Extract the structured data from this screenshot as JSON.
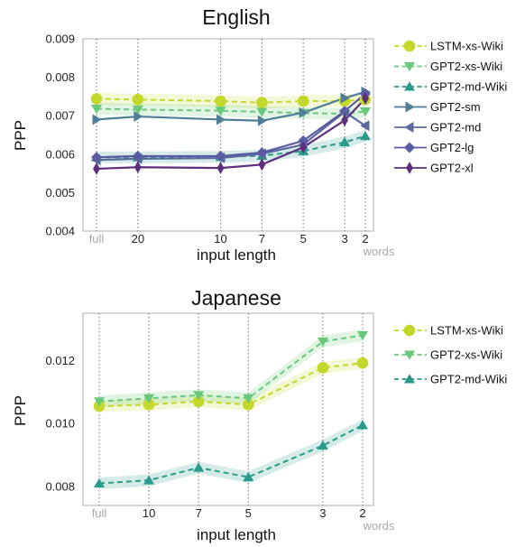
{
  "colors": {
    "LSTM-xs-Wiki": "#c3d82b",
    "GPT2-xs-Wiki": "#69c97a",
    "GPT2-md-Wiki": "#2a9b8a",
    "GPT2-sm": "#4f7e96",
    "GPT2-md": "#5b6a9c",
    "GPT2-lg": "#5c5aa3",
    "GPT2-xl": "#5e2f7d"
  },
  "chart_data": [
    {
      "type": "line",
      "title": "English",
      "xlabel": "input length",
      "ylabel": "PPP",
      "x_unit_label": "words",
      "categories": [
        "full",
        "20",
        "10",
        "7",
        "5",
        "3",
        "2"
      ],
      "x_positions": [
        0,
        1,
        3,
        4,
        5,
        6,
        6.5
      ],
      "ylim": [
        0.004,
        0.009
      ],
      "yticks": [
        "0.004",
        "0.005",
        "0.006",
        "0.007",
        "0.008",
        "0.009"
      ],
      "grid": false,
      "legend_position": "right",
      "series": [
        {
          "name": "LSTM-xs-Wiki",
          "marker": "circle",
          "dashed": true,
          "band": true,
          "values": [
            0.00744,
            0.00742,
            0.00738,
            0.00734,
            0.00738,
            0.00738,
            0.00742
          ]
        },
        {
          "name": "GPT2-xs-Wiki",
          "marker": "tri-down",
          "dashed": true,
          "band": true,
          "values": [
            0.00718,
            0.00716,
            0.00713,
            0.0071,
            0.00707,
            0.00705,
            0.00711
          ]
        },
        {
          "name": "GPT2-md-Wiki",
          "marker": "tri-up",
          "dashed": true,
          "band": true,
          "values": [
            0.00592,
            0.00592,
            0.00593,
            0.00596,
            0.00608,
            0.00631,
            0.00647
          ]
        },
        {
          "name": "GPT2-sm",
          "marker": "tri-right",
          "dashed": false,
          "band": false,
          "values": [
            0.0069,
            0.00698,
            0.0069,
            0.00687,
            0.00708,
            0.00746,
            0.00762
          ]
        },
        {
          "name": "GPT2-md",
          "marker": "tri-left",
          "dashed": false,
          "band": false,
          "values": [
            0.00585,
            0.00588,
            0.0059,
            0.00601,
            0.00625,
            0.0071,
            0.00674
          ]
        },
        {
          "name": "GPT2-lg",
          "marker": "diamond",
          "dashed": false,
          "band": false,
          "values": [
            0.00592,
            0.00595,
            0.00595,
            0.00604,
            0.00635,
            0.00712,
            0.00757
          ]
        },
        {
          "name": "GPT2-xl",
          "marker": "thin-diamond",
          "dashed": false,
          "band": false,
          "values": [
            0.00562,
            0.00566,
            0.00564,
            0.00573,
            0.00618,
            0.00688,
            0.00745
          ]
        }
      ]
    },
    {
      "type": "line",
      "title": "Japanese",
      "xlabel": "input length",
      "ylabel": "PPP",
      "x_unit_label": "words",
      "categories": [
        "full",
        "10",
        "7",
        "5",
        "3",
        "2"
      ],
      "x_positions": [
        0,
        1,
        2,
        3,
        4.5,
        5.3
      ],
      "ylim": [
        0.0074,
        0.0135
      ],
      "yticks": [
        "0.008",
        "0.010",
        "0.012"
      ],
      "grid": false,
      "legend_position": "right",
      "series": [
        {
          "name": "LSTM-xs-Wiki",
          "marker": "circle",
          "dashed": true,
          "band": true,
          "values": [
            0.01055,
            0.0106,
            0.0107,
            0.0106,
            0.01177,
            0.01192
          ]
        },
        {
          "name": "GPT2-xs-Wiki",
          "marker": "tri-down",
          "dashed": true,
          "band": true,
          "values": [
            0.0107,
            0.0108,
            0.0109,
            0.0108,
            0.0126,
            0.0128
          ]
        },
        {
          "name": "GPT2-md-Wiki",
          "marker": "tri-up",
          "dashed": true,
          "band": true,
          "values": [
            0.0081,
            0.0082,
            0.0086,
            0.0083,
            0.0093,
            0.00995
          ]
        }
      ]
    }
  ]
}
